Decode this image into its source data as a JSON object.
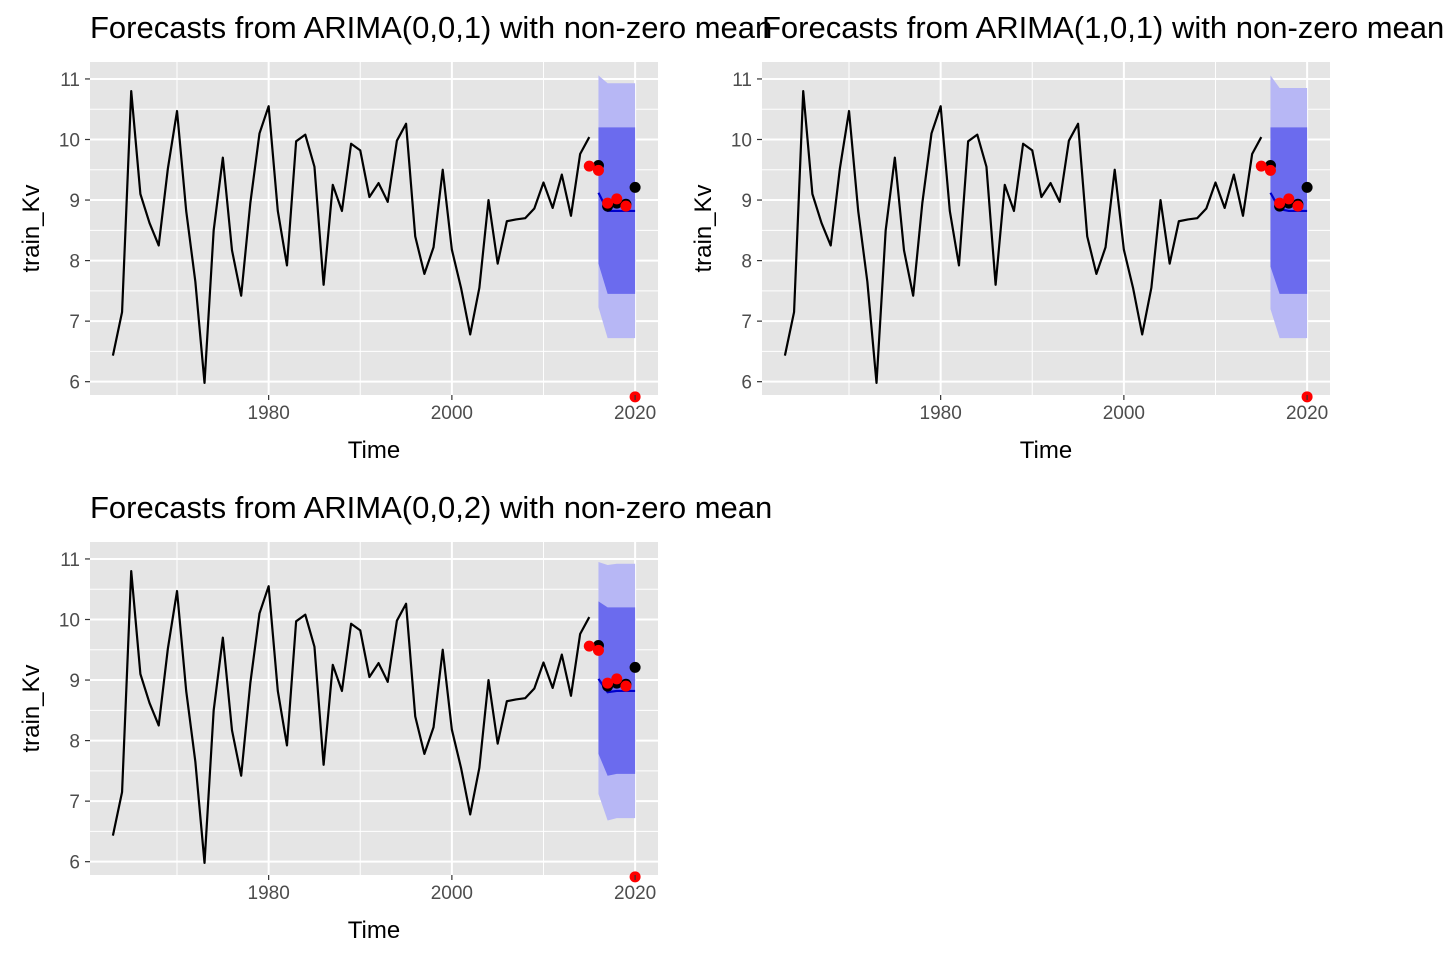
{
  "chart_data": [
    {
      "type": "line",
      "title": "Forecasts from ARIMA(0,0,1) with non-zero mean",
      "xlabel": "Time",
      "ylabel": "train_Kv",
      "xlim": [
        1960.5,
        2022.5
      ],
      "ylim": [
        5.78,
        11.28
      ],
      "x_ticks": [
        1980,
        2000,
        2020
      ],
      "y_ticks": [
        6,
        7,
        8,
        9,
        10,
        11
      ],
      "grid": true,
      "series": [
        {
          "x": [
            1963,
            1964,
            1965,
            1966,
            1967,
            1968,
            1969,
            1970,
            1971,
            1972,
            1973,
            1974,
            1975,
            1976,
            1977,
            1978,
            1979,
            1980,
            1981,
            1982,
            1983,
            1984,
            1985,
            1986,
            1987,
            1988,
            1989,
            1990,
            1991,
            1992,
            1993,
            1994,
            1995,
            1996,
            1997,
            1998,
            1999,
            2000,
            2001,
            2002,
            2003,
            2004,
            2005,
            2006,
            2007,
            2008,
            2009,
            2010,
            2011,
            2012,
            2013,
            2014,
            2015
          ],
          "values": [
            6.43,
            7.15,
            10.8,
            9.1,
            8.62,
            8.25,
            9.52,
            10.47,
            8.82,
            7.65,
            5.98,
            8.5,
            9.7,
            8.17,
            7.42,
            8.95,
            10.1,
            10.55,
            8.82,
            7.92,
            9.97,
            10.08,
            9.55,
            7.6,
            9.25,
            8.82,
            9.93,
            9.82,
            9.05,
            9.28,
            8.97,
            9.98,
            10.26,
            8.4,
            7.78,
            8.22,
            9.5,
            8.18,
            7.55,
            6.78,
            7.55,
            9.0,
            7.95,
            8.65,
            8.68,
            8.7,
            8.86,
            9.29,
            8.87,
            9.42,
            8.74,
            9.76,
            10.04
          ]
        },
        {
          "x": [
            2016,
            2017,
            2018,
            2019,
            2020
          ],
          "values": [
            9.12,
            8.82,
            8.82,
            8.82,
            8.82
          ],
          "hi80": [
            10.2,
            10.2,
            10.2,
            10.2,
            10.2
          ],
          "lo80": [
            7.95,
            7.45,
            7.45,
            7.45,
            7.45
          ],
          "hi95": [
            11.06,
            10.93,
            10.93,
            10.93,
            10.93
          ],
          "lo95": [
            7.23,
            6.72,
            6.72,
            6.72,
            6.72
          ]
        },
        {
          "x": [
            2016,
            2017,
            2018,
            2019,
            2020
          ],
          "values": [
            9.57,
            8.9,
            8.95,
            8.93,
            9.21
          ]
        },
        {
          "x": [
            2015,
            2016,
            2017,
            2018,
            2019,
            2020
          ],
          "values": [
            9.56,
            9.49,
            8.95,
            9.02,
            8.9,
            5.75
          ]
        }
      ]
    },
    {
      "type": "line",
      "title": "Forecasts from ARIMA(1,0,1) with non-zero mean",
      "xlabel": "Time",
      "ylabel": "train_Kv",
      "xlim": [
        1960.5,
        2022.5
      ],
      "ylim": [
        5.78,
        11.28
      ],
      "x_ticks": [
        1980,
        2000,
        2020
      ],
      "y_ticks": [
        6,
        7,
        8,
        9,
        10,
        11
      ],
      "grid": true,
      "series": [
        {
          "x": [
            1963,
            1964,
            1965,
            1966,
            1967,
            1968,
            1969,
            1970,
            1971,
            1972,
            1973,
            1974,
            1975,
            1976,
            1977,
            1978,
            1979,
            1980,
            1981,
            1982,
            1983,
            1984,
            1985,
            1986,
            1987,
            1988,
            1989,
            1990,
            1991,
            1992,
            1993,
            1994,
            1995,
            1996,
            1997,
            1998,
            1999,
            2000,
            2001,
            2002,
            2003,
            2004,
            2005,
            2006,
            2007,
            2008,
            2009,
            2010,
            2011,
            2012,
            2013,
            2014,
            2015
          ],
          "values": [
            6.43,
            7.15,
            10.8,
            9.1,
            8.62,
            8.25,
            9.52,
            10.47,
            8.82,
            7.65,
            5.98,
            8.5,
            9.7,
            8.17,
            7.42,
            8.95,
            10.1,
            10.55,
            8.82,
            7.92,
            9.97,
            10.08,
            9.55,
            7.6,
            9.25,
            8.82,
            9.93,
            9.82,
            9.05,
            9.28,
            8.97,
            9.98,
            10.26,
            8.4,
            7.78,
            8.22,
            9.5,
            8.18,
            7.55,
            6.78,
            7.55,
            9.0,
            7.95,
            8.65,
            8.68,
            8.7,
            8.86,
            9.29,
            8.87,
            9.42,
            8.74,
            9.76,
            10.04
          ]
        },
        {
          "x": [
            2016,
            2017,
            2018,
            2019,
            2020
          ],
          "values": [
            9.12,
            8.85,
            8.82,
            8.82,
            8.82
          ],
          "hi80": [
            10.2,
            10.2,
            10.2,
            10.2,
            10.2
          ],
          "lo80": [
            7.9,
            7.45,
            7.45,
            7.45,
            7.45
          ],
          "hi95": [
            11.06,
            10.85,
            10.85,
            10.85,
            10.85
          ],
          "lo95": [
            7.2,
            6.72,
            6.72,
            6.72,
            6.72
          ]
        },
        {
          "x": [
            2016,
            2017,
            2018,
            2019,
            2020
          ],
          "values": [
            9.57,
            8.9,
            8.95,
            8.93,
            9.21
          ]
        },
        {
          "x": [
            2015,
            2016,
            2017,
            2018,
            2019,
            2020
          ],
          "values": [
            9.56,
            9.49,
            8.95,
            9.02,
            8.9,
            5.75
          ]
        }
      ]
    },
    {
      "type": "line",
      "title": "Forecasts from ARIMA(0,0,2) with non-zero mean",
      "xlabel": "Time",
      "ylabel": "train_Kv",
      "xlim": [
        1960.5,
        2022.5
      ],
      "ylim": [
        5.78,
        11.28
      ],
      "x_ticks": [
        1980,
        2000,
        2020
      ],
      "y_ticks": [
        6,
        7,
        8,
        9,
        10,
        11
      ],
      "grid": true,
      "series": [
        {
          "x": [
            1963,
            1964,
            1965,
            1966,
            1967,
            1968,
            1969,
            1970,
            1971,
            1972,
            1973,
            1974,
            1975,
            1976,
            1977,
            1978,
            1979,
            1980,
            1981,
            1982,
            1983,
            1984,
            1985,
            1986,
            1987,
            1988,
            1989,
            1990,
            1991,
            1992,
            1993,
            1994,
            1995,
            1996,
            1997,
            1998,
            1999,
            2000,
            2001,
            2002,
            2003,
            2004,
            2005,
            2006,
            2007,
            2008,
            2009,
            2010,
            2011,
            2012,
            2013,
            2014,
            2015
          ],
          "values": [
            6.43,
            7.15,
            10.8,
            9.1,
            8.62,
            8.25,
            9.52,
            10.47,
            8.82,
            7.65,
            5.98,
            8.5,
            9.7,
            8.17,
            7.42,
            8.95,
            10.1,
            10.55,
            8.82,
            7.92,
            9.97,
            10.08,
            9.55,
            7.6,
            9.25,
            8.82,
            9.93,
            9.82,
            9.05,
            9.28,
            8.97,
            9.98,
            10.26,
            8.4,
            7.78,
            8.22,
            9.5,
            8.18,
            7.55,
            6.78,
            7.55,
            9.0,
            7.95,
            8.65,
            8.68,
            8.7,
            8.86,
            9.29,
            8.87,
            9.42,
            8.74,
            9.76,
            10.04
          ]
        },
        {
          "x": [
            2016,
            2017,
            2018,
            2019,
            2020
          ],
          "values": [
            9.02,
            8.8,
            8.82,
            8.82,
            8.82
          ],
          "hi80": [
            10.3,
            10.2,
            10.2,
            10.2,
            10.2
          ],
          "lo80": [
            7.78,
            7.42,
            7.45,
            7.45,
            7.45
          ],
          "hi95": [
            10.95,
            10.9,
            10.92,
            10.92,
            10.92
          ],
          "lo95": [
            7.12,
            6.68,
            6.72,
            6.72,
            6.72
          ]
        },
        {
          "x": [
            2016,
            2017,
            2018,
            2019,
            2020
          ],
          "values": [
            9.57,
            8.9,
            8.95,
            8.93,
            9.21
          ]
        },
        {
          "x": [
            2015,
            2016,
            2017,
            2018,
            2019,
            2020
          ],
          "values": [
            9.56,
            9.49,
            8.95,
            9.02,
            8.9,
            5.75
          ]
        }
      ]
    }
  ],
  "colors": {
    "panel_bg": "#E5E5E5",
    "grid": "#FFFFFF",
    "history": "#000000",
    "forecast": "#0000CC",
    "band80": "#6B6BEE",
    "band95": "#B7B7F5",
    "actual_points": "#000000",
    "other_points": "#FF0000",
    "tick_text": "#4D4D4D"
  }
}
